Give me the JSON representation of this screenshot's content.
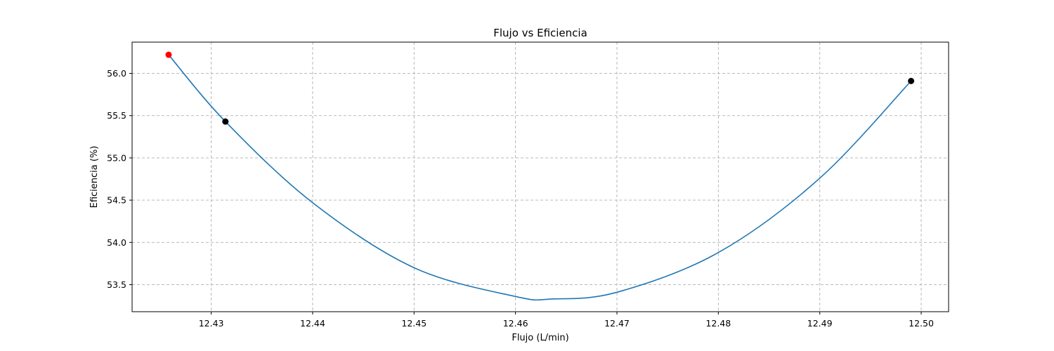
{
  "chart_data": {
    "type": "line",
    "title": "Flujo vs Eficiencia",
    "xlabel": "Flujo (L/min)",
    "ylabel": "Eficiencia (%)",
    "xlim": [
      12.4222,
      12.5027
    ],
    "ylim": [
      53.18,
      56.37
    ],
    "xticks": [
      12.43,
      12.44,
      12.45,
      12.46,
      12.47,
      12.48,
      12.49,
      12.5
    ],
    "xtick_labels": [
      "12.43",
      "12.44",
      "12.45",
      "12.46",
      "12.47",
      "12.48",
      "12.49",
      "12.50"
    ],
    "yticks": [
      53.5,
      54.0,
      54.5,
      55.0,
      55.5,
      56.0
    ],
    "ytick_labels": [
      "53.5",
      "54.0",
      "54.5",
      "55.0",
      "55.5",
      "56.0"
    ],
    "grid": true,
    "series": [
      {
        "type": "line",
        "color": "#1f77b4",
        "x": [
          12.4258,
          12.4314,
          12.44,
          12.45,
          12.46,
          12.4636,
          12.47,
          12.48,
          12.49,
          12.499
        ],
        "y": [
          56.22,
          55.43,
          54.47,
          53.7,
          53.36,
          53.33,
          53.41,
          53.88,
          54.76,
          55.91
        ]
      }
    ],
    "markers": [
      {
        "x": 12.4258,
        "y": 56.22,
        "color": "#ff0000"
      },
      {
        "x": 12.4314,
        "y": 55.43,
        "color": "#000000"
      },
      {
        "x": 12.499,
        "y": 55.91,
        "color": "#000000"
      }
    ]
  }
}
